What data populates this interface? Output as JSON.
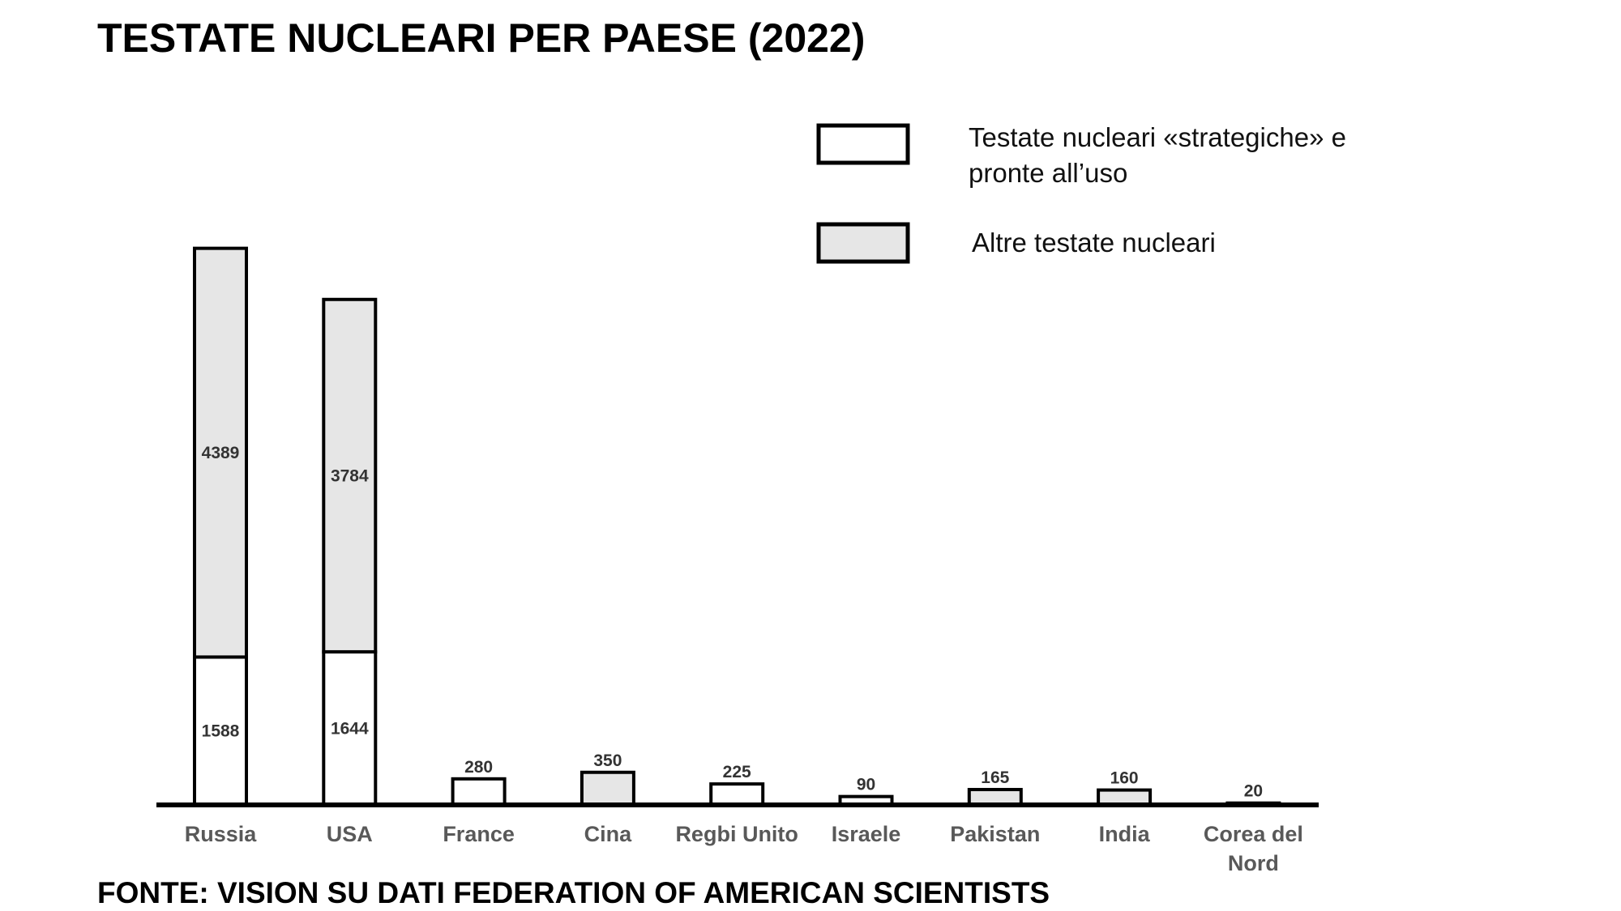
{
  "chart_data": {
    "type": "bar",
    "stacked": true,
    "title": "TESTATE NUCLEARI PER PAESE (2022)",
    "source": "FONTE: VISION SU DATI FEDERATION OF AMERICAN SCIENTISTS",
    "categories": [
      "Russia",
      "USA",
      "France",
      "Cina",
      "Regbi Unito",
      "Israele",
      "Pakistan",
      "India",
      "Corea del Nord"
    ],
    "series": [
      {
        "name": "Testate nucleari «strategiche» e pronte all’uso",
        "color": "#ffffff",
        "values": [
          1588,
          1644,
          280,
          null,
          225,
          90,
          null,
          null,
          20
        ]
      },
      {
        "name": "Altre testate nucleari",
        "color": "#e6e6e6",
        "values": [
          4389,
          3784,
          null,
          350,
          null,
          null,
          165,
          160,
          null
        ]
      }
    ],
    "ylim": [
      0,
      6000
    ]
  }
}
